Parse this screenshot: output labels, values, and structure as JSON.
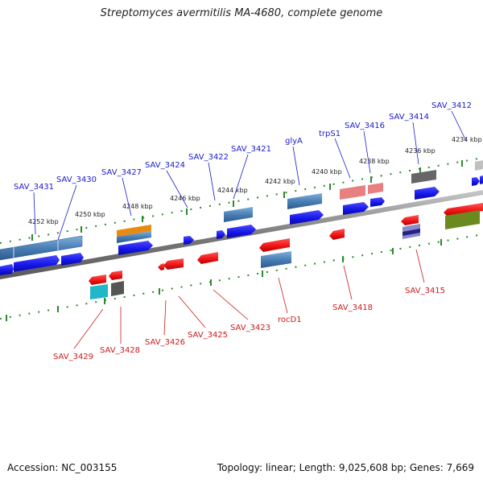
{
  "title": "Streptomyces avermitilis MA-4680, complete genome",
  "accession": "Accession: NC_003155",
  "topology": "Topology: linear; Length: 9,025,608 bp; Genes: 7,669",
  "colors": {
    "backbone": "#8a8a8a",
    "forward_label": "#1a1acc",
    "reverse_label": "#cc1a1a",
    "tick": "#2a8a2a",
    "gene_blue": "#1414e6",
    "gene_red": "#ee1111",
    "feature_steel": "#4a7fb5",
    "feature_orange": "#e88a10",
    "feature_pink": "#e98080",
    "feature_gray": "#666666",
    "feature_cyan": "#20b8c8",
    "feature_olive": "#6a8a20",
    "feature_navy": "#222288"
  },
  "scale_labels": [
    "4252 kbp",
    "4250 kbp",
    "4248 kbp",
    "4246 kbp",
    "4244 kbp",
    "4242 kbp",
    "4240 kbp",
    "4238 kbp",
    "4236 kbp",
    "4234 kbp"
  ],
  "forward_labels": [
    "SAV_3431",
    "SAV_3430",
    "SAV_3427",
    "SAV_3424",
    "SAV_3422",
    "SAV_3421",
    "glyA",
    "trpS1",
    "SAV_3416",
    "SAV_3414",
    "SAV_3412"
  ],
  "reverse_labels": [
    "SAV_3429",
    "SAV_3428",
    "SAV_3426",
    "SAV_3425",
    "SAV_3423",
    "rocD1",
    "SAV_3418",
    "SAV_3415"
  ]
}
